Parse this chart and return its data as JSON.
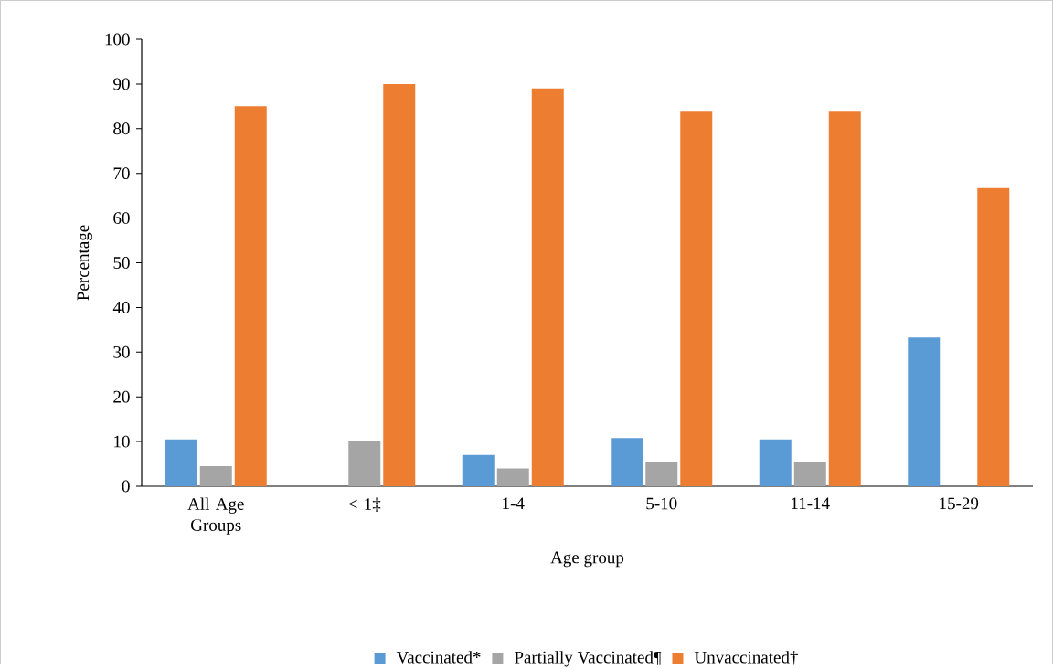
{
  "chart_data": {
    "type": "bar",
    "xlabel": "Age group",
    "ylabel": "Percentage",
    "categories": [
      "All Age Groups",
      "< 1‡",
      "1-4",
      "5-10",
      "11-14",
      "15-29"
    ],
    "series": [
      {
        "name": "Vaccinated*",
        "color": "#5b9bd5",
        "values": [
          10.5,
          0,
          7,
          10.8,
          10.5,
          33.3
        ]
      },
      {
        "name": "Partially Vaccinated¶",
        "color": "#a5a5a5",
        "values": [
          4.5,
          10,
          4,
          5.3,
          5.3,
          0
        ]
      },
      {
        "name": "Unvaccinated†",
        "color": "#ed7d31",
        "values": [
          85,
          90,
          89,
          84,
          84,
          66.7
        ]
      }
    ],
    "ylim": [
      0,
      100
    ],
    "yticks": [
      0,
      10,
      20,
      30,
      40,
      50,
      60,
      70,
      80,
      90,
      100
    ],
    "grid": false,
    "legend": "bottom"
  }
}
